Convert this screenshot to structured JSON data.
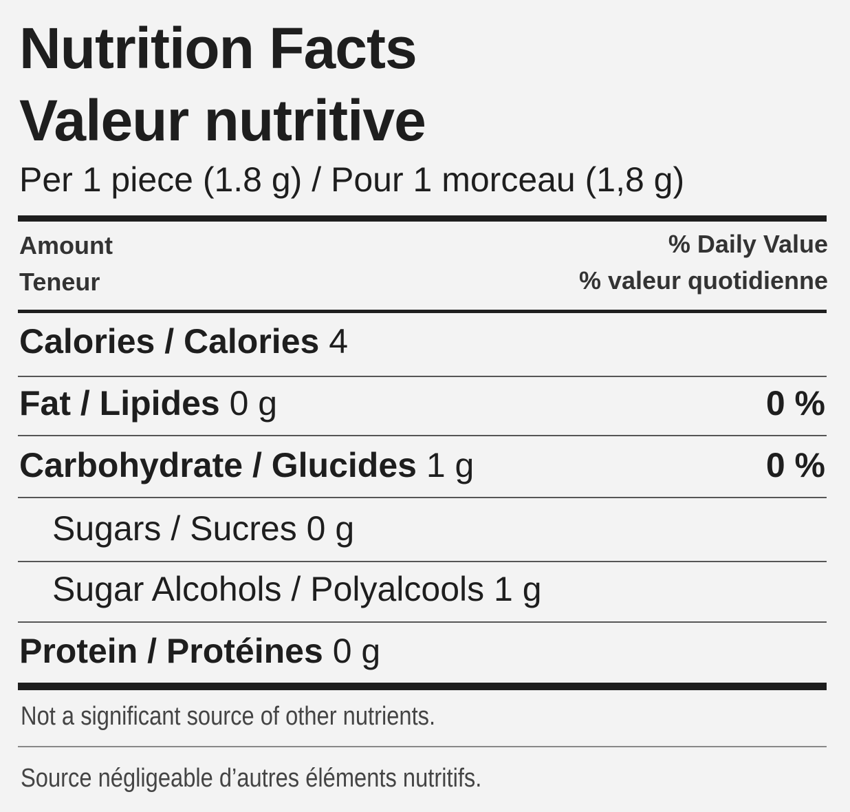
{
  "title": "Nutrition Facts",
  "title_fr": "Valeur nutritive",
  "serving": "Per 1 piece (1.8 g) / Pour 1 morceau (1,8 g)",
  "header": {
    "amount": "Amount",
    "amount_fr": "Teneur",
    "dv": "% Daily Value",
    "dv_fr": "% valeur quotidienne"
  },
  "rows": [
    {
      "name": "Calories / Calories",
      "amount": "4"
    },
    {
      "name": "Fat / Lipides",
      "amount": "0 g",
      "dv": "0 %"
    },
    {
      "name": "Carbohydrate / Glucides",
      "amount": "1 g",
      "dv": "0 %"
    },
    {
      "name": "Sugars / Sucres",
      "amount": "0 g"
    },
    {
      "name": "Sugar Alcohols / Polyalcools",
      "amount": "1 g"
    },
    {
      "name": "Protein / Protéines",
      "amount": "0 g"
    }
  ],
  "footnote": "Not a significant source of other nutrients.",
  "footnote_fr": "Source négligeable d’autres éléments nutritifs."
}
